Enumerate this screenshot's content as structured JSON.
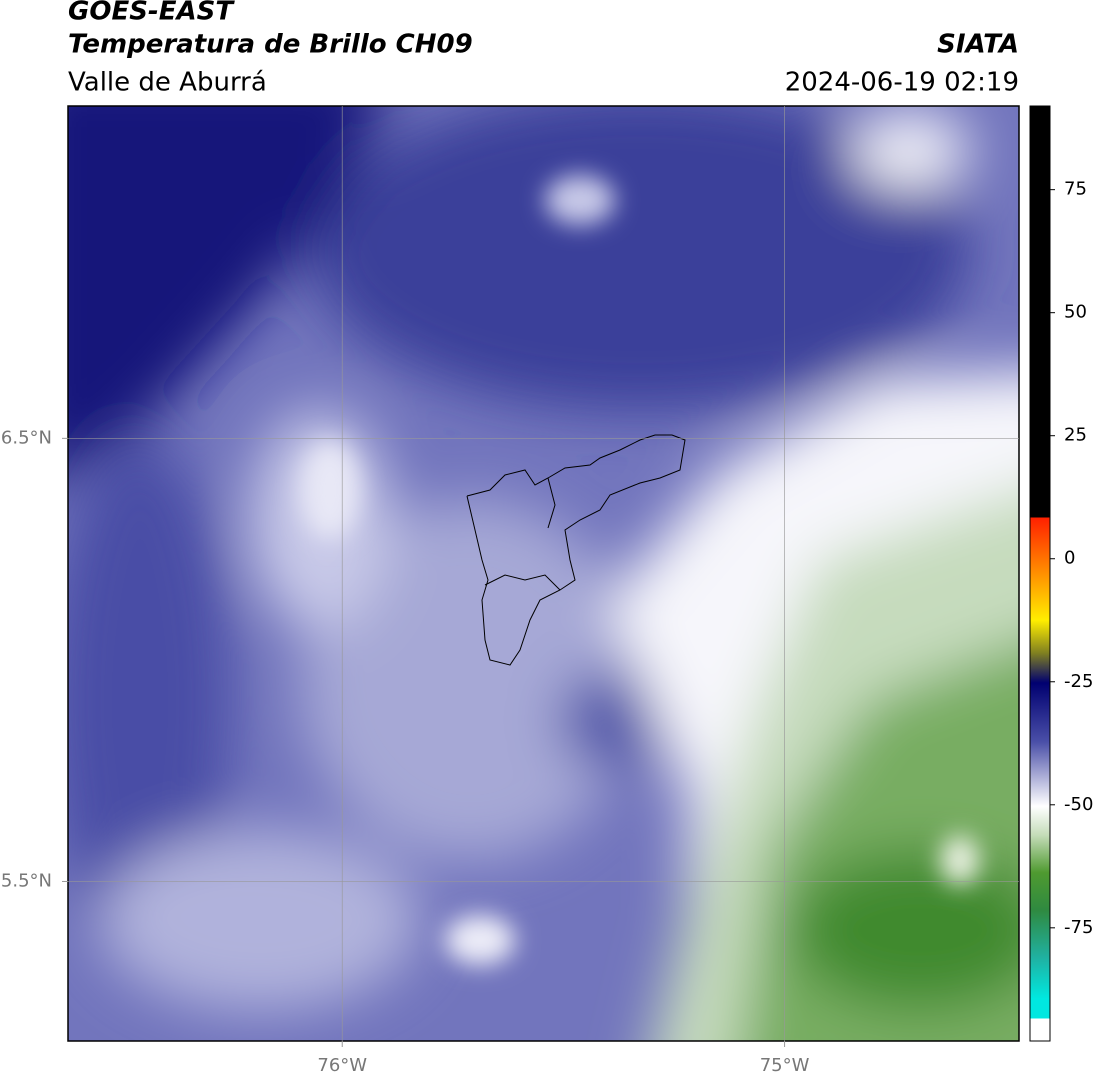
{
  "header": {
    "title": "GOES-EAST",
    "subtitle": "Temperatura de Brillo CH09",
    "source": "SIATA",
    "region": "Valle de Aburrá",
    "datetime": "2024-06-19 02:19"
  },
  "chart_data": {
    "type": "map",
    "xlim": [
      -76.62,
      -74.47
    ],
    "ylim": [
      5.14,
      7.25
    ],
    "xticks": [
      {
        "value": -76,
        "label": "76°W"
      },
      {
        "value": -75,
        "label": "75°W"
      }
    ],
    "yticks": [
      {
        "value": 5.5,
        "label": "5.5°N"
      },
      {
        "value": 6.5,
        "label": "6.5°N"
      }
    ],
    "grid": true,
    "colorbar": {
      "lim": [
        -98,
        92
      ],
      "ticks": [
        -75,
        -50,
        -25,
        0,
        25,
        50,
        75
      ]
    }
  }
}
